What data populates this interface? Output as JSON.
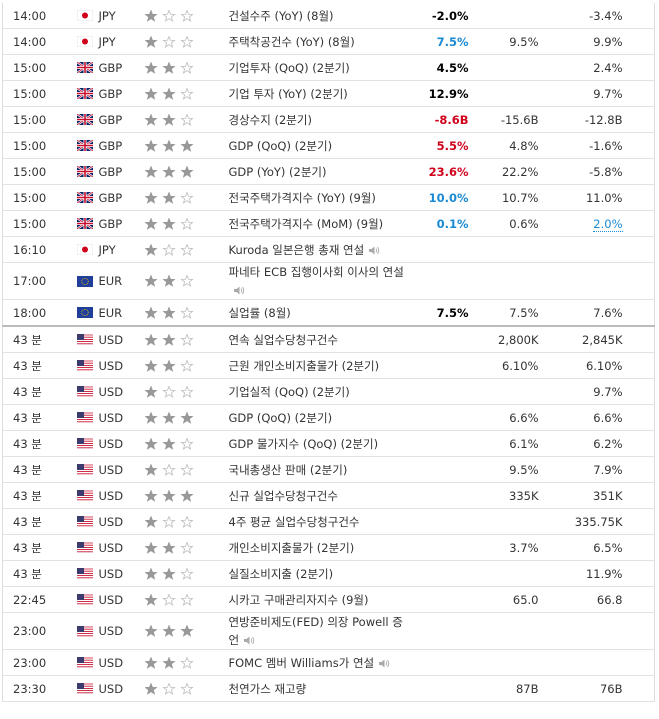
{
  "sections": [
    {
      "rows": [
        {
          "time": "14:00",
          "currency": "JPY",
          "importance": 1,
          "event": "건설수주 (YoY) (8월)",
          "actual": "-2.0%",
          "actual_color": "#000000",
          "previous": "-3.4%"
        },
        {
          "time": "14:00",
          "currency": "JPY",
          "importance": 1,
          "event": "주택착공건수 (YoY) (8월)",
          "actual": "7.5%",
          "actual_color": "#1a8ad4",
          "forecast": "9.5%",
          "previous": "9.9%"
        },
        {
          "time": "15:00",
          "currency": "GBP",
          "importance": 2,
          "event": "기업투자 (QoQ) (2분기)",
          "actual": "4.5%",
          "actual_color": "#000000",
          "previous": "2.4%"
        },
        {
          "time": "15:00",
          "currency": "GBP",
          "importance": 2,
          "event": "기업 투자 (YoY) (2분기)",
          "actual": "12.9%",
          "actual_color": "#000000",
          "previous": "9.7%"
        },
        {
          "time": "15:00",
          "currency": "GBP",
          "importance": 2,
          "event": "경상수지 (2분기)",
          "actual": "-8.6B",
          "actual_color": "#d0021b",
          "forecast": "-15.6B",
          "previous": "-12.8B"
        },
        {
          "time": "15:00",
          "currency": "GBP",
          "importance": 3,
          "event": "GDP (QoQ) (2분기)",
          "actual": "5.5%",
          "actual_color": "#d0021b",
          "forecast": "4.8%",
          "previous": "-1.6%"
        },
        {
          "time": "15:00",
          "currency": "GBP",
          "importance": 3,
          "event": "GDP (YoY) (2분기)",
          "actual": "23.6%",
          "actual_color": "#d0021b",
          "forecast": "22.2%",
          "previous": "-5.8%"
        },
        {
          "time": "15:00",
          "currency": "GBP",
          "importance": 2,
          "event": "전국주택가격지수 (YoY) (9월)",
          "actual": "10.0%",
          "actual_color": "#1a8ad4",
          "forecast": "10.7%",
          "previous": "11.0%"
        },
        {
          "time": "15:00",
          "currency": "GBP",
          "importance": 2,
          "event": "전국주택가격지수 (MoM) (9월)",
          "actual": "0.1%",
          "actual_color": "#1a8ad4",
          "forecast": "0.6%",
          "previous": "2.0%",
          "previous_revised": true
        },
        {
          "time": "16:10",
          "currency": "JPY",
          "importance": 1,
          "event": "Kuroda 일본은행 총재 연설",
          "speech": true
        },
        {
          "time": "17:00",
          "currency": "EUR",
          "importance": 2,
          "event": "파네타 ECB 집행이사회 이사의 연설",
          "speech": true
        },
        {
          "time": "18:00",
          "currency": "EUR",
          "importance": 2,
          "event": "실업률 (8월)",
          "actual": "7.5%",
          "actual_color": "#000000",
          "forecast": "7.5%",
          "previous": "7.6%"
        }
      ]
    },
    {
      "rows": [
        {
          "time": "43 분",
          "currency": "USD",
          "importance": 2,
          "event": "연속 실업수당청구건수",
          "forecast": "2,800K",
          "previous": "2,845K"
        },
        {
          "time": "43 분",
          "currency": "USD",
          "importance": 2,
          "event": "근원 개인소비지출물가 (2분기)",
          "forecast": "6.10%",
          "previous": "6.10%"
        },
        {
          "time": "43 분",
          "currency": "USD",
          "importance": 1,
          "event": "기업실적 (QoQ) (2분기)",
          "previous": "9.7%"
        },
        {
          "time": "43 분",
          "currency": "USD",
          "importance": 3,
          "event": "GDP (QoQ) (2분기)",
          "forecast": "6.6%",
          "previous": "6.6%"
        },
        {
          "time": "43 분",
          "currency": "USD",
          "importance": 2,
          "event": "GDP 물가지수 (QoQ) (2분기)",
          "forecast": "6.1%",
          "previous": "6.2%"
        },
        {
          "time": "43 분",
          "currency": "USD",
          "importance": 1,
          "event": "국내총생산 판매 (2분기)",
          "forecast": "9.5%",
          "previous": "7.9%"
        },
        {
          "time": "43 분",
          "currency": "USD",
          "importance": 3,
          "event": "신규 실업수당청구건수",
          "forecast": "335K",
          "previous": "351K"
        },
        {
          "time": "43 분",
          "currency": "USD",
          "importance": 1,
          "event": "4주 평균 실업수당청구건수",
          "previous": "335.75K"
        },
        {
          "time": "43 분",
          "currency": "USD",
          "importance": 2,
          "event": "개인소비지출물가 (2분기)",
          "forecast": "3.7%",
          "previous": "6.5%"
        },
        {
          "time": "43 분",
          "currency": "USD",
          "importance": 2,
          "event": "실질소비지출 (2분기)",
          "previous": "11.9%"
        },
        {
          "time": "22:45",
          "currency": "USD",
          "importance": 1,
          "event": "시카고 구매관리자지수 (9월)",
          "forecast": "65.0",
          "previous": "66.8"
        },
        {
          "time": "23:00",
          "currency": "USD",
          "importance": 3,
          "event": "연방준비제도(FED) 의장 Powell 증언",
          "speech": true
        },
        {
          "time": "23:00",
          "currency": "USD",
          "importance": 2,
          "event": "FOMC 멤버 Williams가 연설",
          "speech": true
        },
        {
          "time": "23:30",
          "currency": "USD",
          "importance": 1,
          "event": "천연가스 재고량",
          "forecast": "87B",
          "previous": "76B"
        }
      ]
    }
  ]
}
